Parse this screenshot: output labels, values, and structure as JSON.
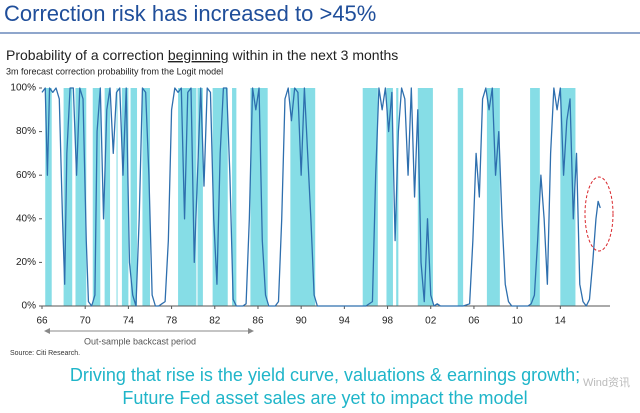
{
  "chart_data": {
    "type": "line",
    "title": "Correction risk has increased to >45%",
    "subtitle": [
      "Probability of a correction ",
      "beginning",
      " within in the next 3 months"
    ],
    "note": "3m forecast correction probability from the Logit model",
    "backcast_label": "Out-sample backcast period",
    "source": "Source: Citi Research.",
    "takeaway": [
      "Driving that rise is the yield curve, valuations  & earnings growth;",
      "Future Fed asset sales are yet to impact the model"
    ],
    "watermark": "Wind资讯",
    "color": "#2e6fae",
    "shade_color": "#86dde6",
    "x": [
      1966.0,
      1966.3,
      1966.5,
      1966.7,
      1967.0,
      1967.3,
      1967.6,
      1967.9,
      1968.1,
      1968.3,
      1968.6,
      1968.9,
      1969.2,
      1969.5,
      1969.8,
      1970.1,
      1970.3,
      1970.6,
      1970.9,
      1971.1,
      1971.4,
      1971.7,
      1972.0,
      1972.3,
      1972.6,
      1972.9,
      1973.2,
      1973.5,
      1973.8,
      1974.1,
      1974.4,
      1974.7,
      1975.0,
      1975.3,
      1975.6,
      1975.9,
      1976.2,
      1976.5,
      1976.8,
      1977.1,
      1977.4,
      1977.7,
      1978.0,
      1978.3,
      1978.6,
      1978.9,
      1979.2,
      1979.5,
      1979.8,
      1980.1,
      1980.4,
      1980.7,
      1981.0,
      1981.3,
      1981.6,
      1981.9,
      1982.2,
      1982.5,
      1982.8,
      1983.1,
      1983.4,
      1983.7,
      1984.0,
      1984.3,
      1984.6,
      1984.9,
      1985.2,
      1985.5,
      1985.8,
      1986.1,
      1986.4,
      1986.7,
      1987.0,
      1987.3,
      1987.6,
      1987.9,
      1988.2,
      1988.5,
      1988.8,
      1989.1,
      1989.4,
      1989.7,
      1990.0,
      1990.3,
      1990.6,
      1990.9,
      1991.2,
      1991.5,
      1992.0,
      1993.0,
      1994.0,
      1995.0,
      1996.0,
      1996.6,
      1996.9,
      1997.2,
      1997.5,
      1997.8,
      1998.1,
      1998.4,
      1998.7,
      1999.0,
      1999.3,
      1999.6,
      1999.9,
      2000.2,
      2000.5,
      2000.8,
      2001.1,
      2001.4,
      2001.7,
      2002.0,
      2002.3,
      2002.6,
      2002.9,
      2003.5,
      2004.0,
      2005.0,
      2005.6,
      2005.9,
      2006.2,
      2006.5,
      2006.8,
      2007.1,
      2007.4,
      2007.7,
      2008.0,
      2008.3,
      2008.6,
      2008.9,
      2009.2,
      2009.5,
      2010.0,
      2010.5,
      2011.0,
      2011.3,
      2011.6,
      2011.9,
      2012.2,
      2012.5,
      2012.8,
      2013.1,
      2013.4,
      2013.7,
      2014.0,
      2014.3,
      2014.6,
      2014.9,
      2015.2,
      2015.5,
      2015.8,
      2016.1,
      2016.4,
      2016.7,
      2017.0,
      2017.3,
      2017.5,
      2017.7
    ],
    "values": [
      98,
      100,
      60,
      100,
      98,
      100,
      95,
      40,
      10,
      70,
      100,
      100,
      60,
      100,
      95,
      30,
      2,
      0,
      5,
      80,
      100,
      40,
      90,
      100,
      70,
      98,
      100,
      60,
      100,
      20,
      5,
      0,
      40,
      100,
      98,
      60,
      5,
      0,
      0,
      1,
      2,
      30,
      90,
      100,
      98,
      100,
      40,
      98,
      100,
      20,
      60,
      100,
      55,
      100,
      98,
      40,
      10,
      70,
      100,
      100,
      60,
      3,
      0,
      0,
      0,
      1,
      40,
      100,
      90,
      100,
      30,
      5,
      0,
      0,
      0,
      2,
      40,
      95,
      100,
      85,
      100,
      98,
      60,
      100,
      70,
      40,
      5,
      0,
      0,
      0,
      0,
      0,
      0,
      2,
      60,
      100,
      90,
      100,
      80,
      98,
      30,
      80,
      100,
      95,
      60,
      100,
      50,
      90,
      20,
      2,
      40,
      5,
      0,
      1,
      0,
      0,
      0,
      0,
      1,
      30,
      70,
      50,
      95,
      100,
      90,
      100,
      60,
      80,
      40,
      10,
      2,
      0,
      0,
      0,
      0,
      1,
      5,
      30,
      60,
      40,
      10,
      70,
      100,
      90,
      100,
      60,
      85,
      95,
      40,
      70,
      10,
      2,
      0,
      3,
      20,
      40,
      48,
      45
    ],
    "shaded_periods": [
      [
        1966.3,
        1966.9
      ],
      [
        1968.0,
        1968.8
      ],
      [
        1969.1,
        1970.1
      ],
      [
        1970.7,
        1971.4
      ],
      [
        1971.8,
        1972.3
      ],
      [
        1972.9,
        1973.0
      ],
      [
        1973.4,
        1974.0
      ],
      [
        1974.2,
        1974.8
      ],
      [
        1975.3,
        1976.0
      ],
      [
        1978.6,
        1980.3
      ],
      [
        1980.4,
        1980.9
      ],
      [
        1981.8,
        1983.2
      ],
      [
        1983.6,
        1984.0
      ],
      [
        1985.3,
        1986.9
      ],
      [
        1989.0,
        1991.3
      ],
      [
        1995.7,
        1997.1
      ],
      [
        1997.9,
        1998.5
      ],
      [
        1998.8,
        1999.0
      ],
      [
        2000.8,
        2002.2
      ],
      [
        2004.5,
        2005.0
      ],
      [
        2007.2,
        2008.4
      ],
      [
        2011.2,
        2012.1
      ],
      [
        2014.0,
        2015.4
      ]
    ],
    "xlim": [
      1966,
      2018.6
    ],
    "xticks": [
      {
        "value": 1966,
        "label": "66"
      },
      {
        "value": 1970,
        "label": "70"
      },
      {
        "value": 1974,
        "label": "74"
      },
      {
        "value": 1978,
        "label": "78"
      },
      {
        "value": 1982,
        "label": "82"
      },
      {
        "value": 1986,
        "label": "86"
      },
      {
        "value": 1990,
        "label": "90"
      },
      {
        "value": 1994,
        "label": "94"
      },
      {
        "value": 1998,
        "label": "98"
      },
      {
        "value": 2002,
        "label": "02"
      },
      {
        "value": 2006,
        "label": "06"
      },
      {
        "value": 2010,
        "label": "10"
      },
      {
        "value": 2014,
        "label": "14"
      }
    ],
    "ylim": [
      0,
      100
    ],
    "yticks": [
      {
        "value": 0,
        "label": "0%"
      },
      {
        "value": 20,
        "label": "20%"
      },
      {
        "value": 40,
        "label": "40%"
      },
      {
        "value": 60,
        "label": "60%"
      },
      {
        "value": 80,
        "label": "80%"
      },
      {
        "value": 100,
        "label": "100%"
      }
    ]
  }
}
